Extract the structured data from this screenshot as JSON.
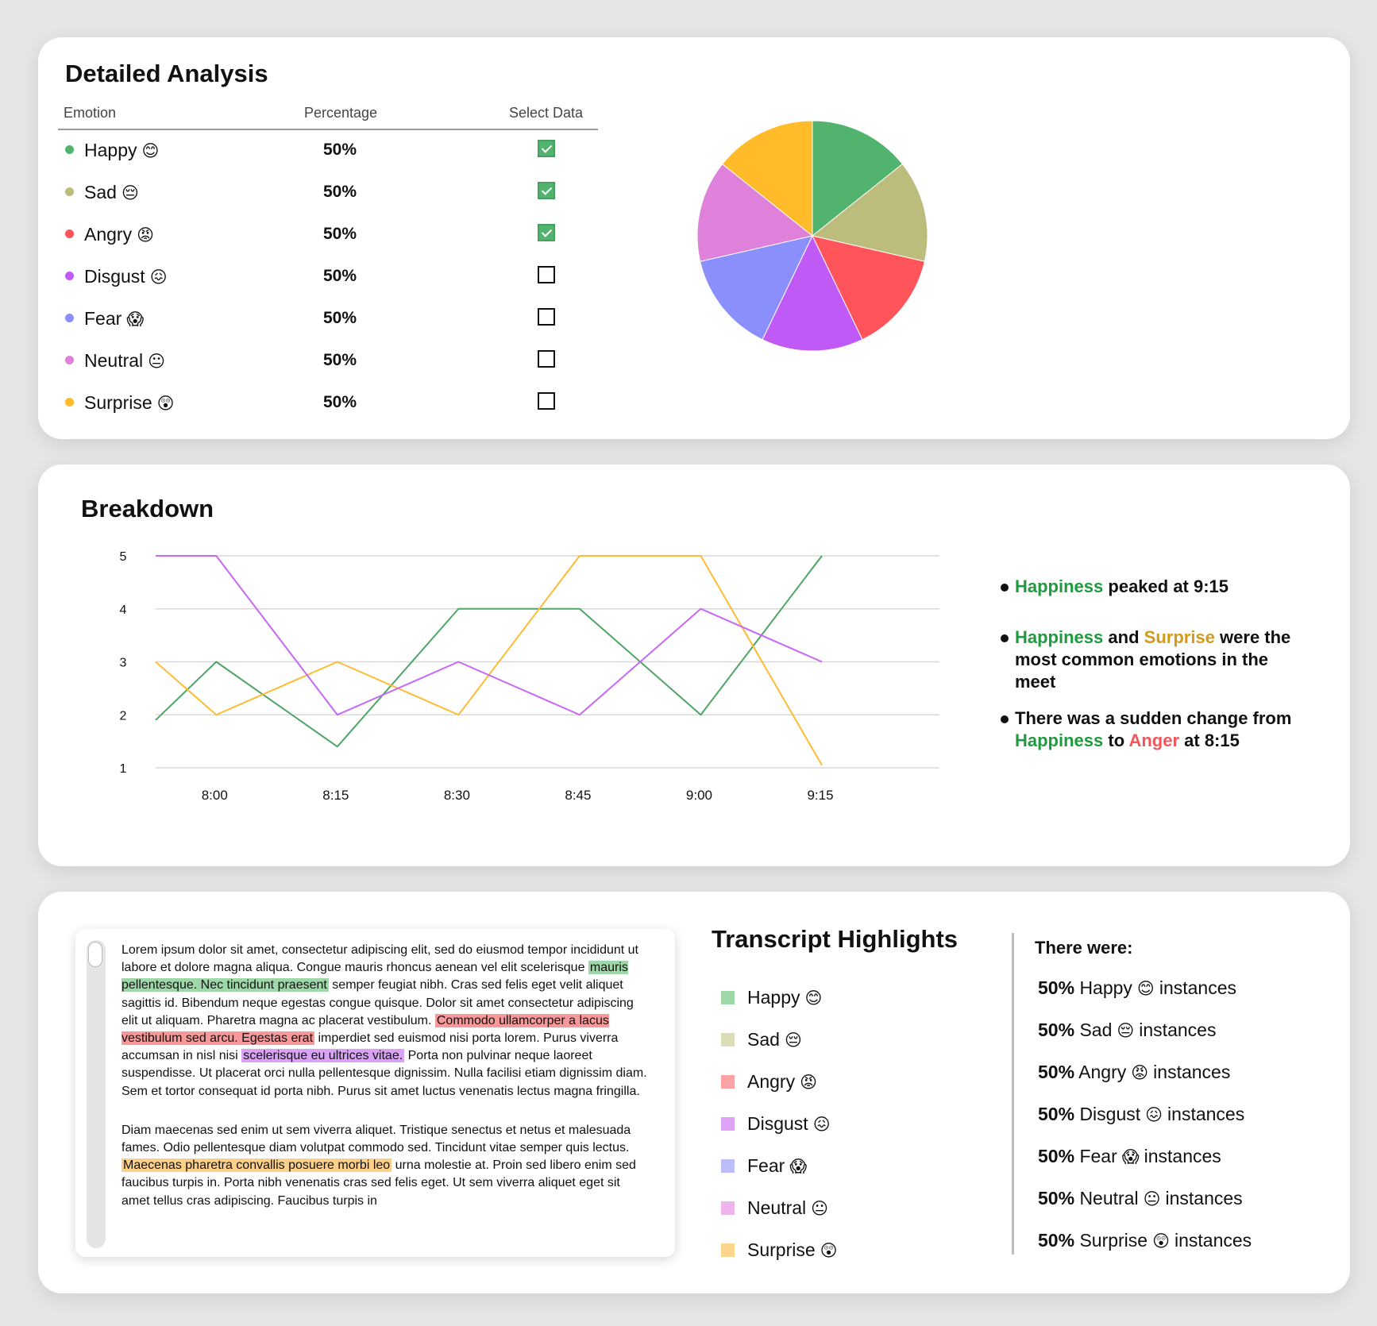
{
  "analysis": {
    "title": "Detailed Analysis",
    "columns": {
      "emotion": "Emotion",
      "percentage": "Percentage",
      "select": "Select Data"
    },
    "rows": [
      {
        "emotion": "Happy",
        "emoji": "😊",
        "percentage": "50%",
        "selected": true,
        "color": "#52b36e"
      },
      {
        "emotion": "Sad",
        "emoji": "😔",
        "percentage": "50%",
        "selected": true,
        "color": "#bcbc7d"
      },
      {
        "emotion": "Angry",
        "emoji": "😡",
        "percentage": "50%",
        "selected": true,
        "color": "#ff5459"
      },
      {
        "emotion": "Disgust",
        "emoji": "😖",
        "percentage": "50%",
        "selected": false,
        "color": "#c05af7"
      },
      {
        "emotion": "Fear",
        "emoji": "😱",
        "percentage": "50%",
        "selected": false,
        "color": "#8b8ffb"
      },
      {
        "emotion": "Neutral",
        "emoji": "😐",
        "percentage": "50%",
        "selected": false,
        "color": "#df80db"
      },
      {
        "emotion": "Surprise",
        "emoji": "😲",
        "percentage": "50%",
        "selected": false,
        "color": "#ffbb2a"
      }
    ]
  },
  "breakdown": {
    "title": "Breakdown",
    "insights": {
      "i1": {
        "emotion": "Happiness",
        "text": "peaked at 9:15"
      },
      "i2": {
        "emotion1": "Happiness",
        "and": "and",
        "emotion2": "Surprise",
        "text": "were the most common emotions in the meet"
      },
      "i3": {
        "text": "There was a sudden change from",
        "from": "Happiness",
        "to": "to",
        "to_emotion": "Anger",
        "time": "at 8:15"
      }
    }
  },
  "chart_data": [
    {
      "type": "pie",
      "categories": [
        "Happy",
        "Sad",
        "Angry",
        "Disgust",
        "Fear",
        "Neutral",
        "Surprise"
      ],
      "values": [
        50,
        50,
        50,
        50,
        50,
        50,
        50
      ],
      "colors": [
        "#52b36e",
        "#bcbc7d",
        "#ff5459",
        "#c05af7",
        "#8b8ffb",
        "#df80db",
        "#ffbb2a"
      ]
    },
    {
      "type": "line",
      "x": [
        "8:00",
        "8:15",
        "8:30",
        "8:45",
        "9:00",
        "9:15"
      ],
      "yticks": [
        1,
        2,
        3,
        4,
        5
      ],
      "ylim": [
        1,
        5
      ],
      "grid": true,
      "series": [
        {
          "color": "#4fa565",
          "points": [
            [
              7.75,
              1.9
            ],
            [
              8.0,
              3.0
            ],
            [
              8.5,
              1.4
            ],
            [
              9.0,
              4.0
            ],
            [
              9.5,
              4.0
            ],
            [
              10.0,
              2.0
            ],
            [
              10.5,
              5.0
            ]
          ]
        },
        {
          "color": "#ffbb33",
          "points": [
            [
              7.75,
              3.0
            ],
            [
              8.0,
              2.0
            ],
            [
              8.5,
              3.0
            ],
            [
              9.0,
              2.0
            ],
            [
              9.5,
              5.0
            ],
            [
              10.0,
              5.0
            ],
            [
              10.5,
              1.05
            ]
          ]
        },
        {
          "color": "#c866f7",
          "points": [
            [
              7.75,
              5.0
            ],
            [
              8.0,
              5.0
            ],
            [
              8.5,
              2.0
            ],
            [
              9.0,
              3.0
            ],
            [
              9.5,
              2.0
            ],
            [
              10.0,
              4.0
            ],
            [
              10.5,
              3.0
            ]
          ]
        }
      ]
    }
  ],
  "transcript": {
    "p1_a": "Lorem ipsum dolor sit amet, consectetur adipiscing elit, sed do eiusmod tempor incididunt ut labore et dolore magna aliqua. Congue mauris rhoncus aenean vel elit scelerisque",
    "p1_h1": "mauris pellentesque. Nec tincidunt praesent",
    "p1_b": "semper feugiat nibh. Cras sed felis eget velit aliquet sagittis id. Bibendum neque egestas congue quisque. Dolor sit amet consectetur adipiscing elit ut aliquam. Pharetra magna ac placerat vestibulum.",
    "p1_h2": "Commodo ullamcorper a lacus vestibulum sed arcu. Egestas erat",
    "p1_c": "imperdiet sed euismod nisi porta lorem. Purus viverra accumsan in nisl nisi",
    "p1_h3": "scelerisque eu ultrices vitae.",
    "p1_d": "Porta non pulvinar neque laoreet suspendisse. Ut placerat orci nulla pellentesque dignissim. Nulla facilisi etiam dignissim diam. Sem et tortor consequat id porta nibh. Purus sit amet luctus venenatis lectus magna fringilla.",
    "p2_a": "Diam maecenas sed enim ut sem viverra aliquet. Tristique senectus et netus et malesuada fames. Odio pellentesque diam volutpat commodo sed. Tincidunt vitae semper quis lectus.",
    "p2_h1": "Maecenas pharetra convallis posuere morbi leo",
    "p2_b": "urna molestie at. Proin sed libero enim sed faucibus turpis in. Porta nibh venenatis cras sed felis eget. Ut sem viverra aliquet eget sit amet tellus cras adipiscing. Faucibus turpis in"
  },
  "highlights": {
    "title": "Transcript Highlights",
    "legend": [
      {
        "label": "Happy",
        "emoji": "😊",
        "color": "#9ed7a8"
      },
      {
        "label": "Sad",
        "emoji": "😔",
        "color": "#dcdcb8"
      },
      {
        "label": "Angry",
        "emoji": "😡",
        "color": "#fba3a5"
      },
      {
        "label": "Disgust",
        "emoji": "😖",
        "color": "#dea3f7"
      },
      {
        "label": "Fear",
        "emoji": "😱",
        "color": "#bcbef9"
      },
      {
        "label": "Neutral",
        "emoji": "😐",
        "color": "#eeb4eb"
      },
      {
        "label": "Surprise",
        "emoji": "😲",
        "color": "#fdd68e"
      }
    ],
    "counts_title": "There were:",
    "instances_label": "instances",
    "counts": [
      {
        "pct": "50%",
        "label": "Happy",
        "emoji": "😊"
      },
      {
        "pct": "50%",
        "label": "Sad",
        "emoji": "😔"
      },
      {
        "pct": "50%",
        "label": "Angry",
        "emoji": "😡"
      },
      {
        "pct": "50%",
        "label": "Disgust",
        "emoji": "😖"
      },
      {
        "pct": "50%",
        "label": "Fear",
        "emoji": "😱"
      },
      {
        "pct": "50%",
        "label": "Neutral",
        "emoji": "😐"
      },
      {
        "pct": "50%",
        "label": "Surprise",
        "emoji": "😲"
      }
    ]
  }
}
